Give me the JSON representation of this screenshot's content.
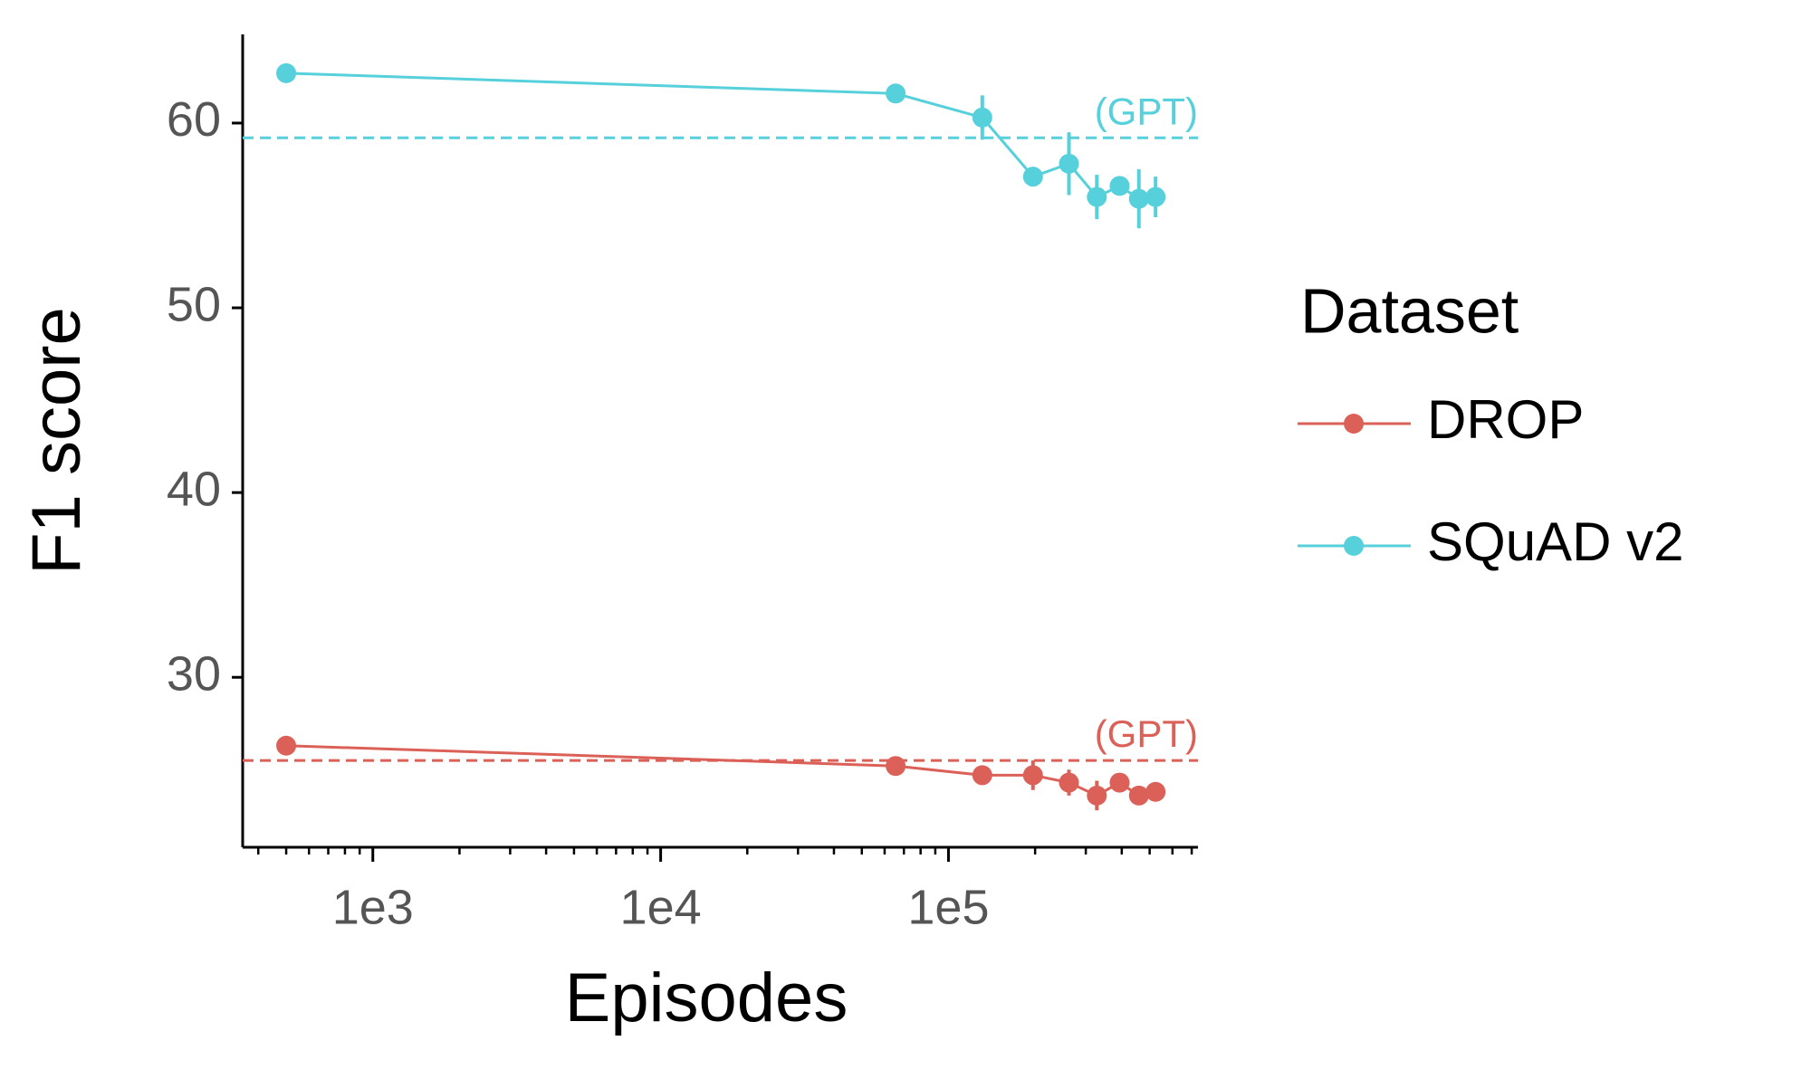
{
  "chart_data": {
    "type": "line",
    "x_label": "Episodes",
    "y_label": "F1 score",
    "x": [
      500,
      65536,
      131072,
      196608,
      262144,
      327680,
      393216,
      458752,
      524288
    ],
    "xscale": "log",
    "xlim": [
      353,
      736000
    ],
    "xticks": [
      {
        "value": 1000,
        "label": "1e3"
      },
      {
        "value": 10000,
        "label": "1e4"
      },
      {
        "value": 100000,
        "label": "1e5"
      }
    ],
    "xminorticks": [
      400,
      500,
      600,
      700,
      800,
      900,
      2000,
      3000,
      4000,
      5000,
      6000,
      7000,
      8000,
      9000,
      20000,
      30000,
      40000,
      50000,
      60000,
      70000,
      80000,
      90000,
      200000,
      300000,
      400000,
      500000,
      600000,
      700000
    ],
    "ylim": [
      20.8,
      64.8
    ],
    "yticks": [
      30,
      40,
      50,
      60
    ],
    "legend_title": "Dataset",
    "legend_position": "right",
    "series": [
      {
        "name": "DROP",
        "color": "#db6158",
        "values": [
          26.3,
          25.2,
          24.7,
          24.7,
          24.3,
          23.6,
          24.3,
          23.6,
          23.8
        ],
        "errors": [
          0.2,
          0.2,
          0.3,
          0.8,
          0.7,
          0.8,
          0.3,
          0.3,
          0.3
        ],
        "reference": 25.5,
        "reference_label": "(GPT)"
      },
      {
        "name": "SQuAD v2",
        "color": "#56d0db",
        "values": [
          62.7,
          61.6,
          60.3,
          57.1,
          57.8,
          56.0,
          56.6,
          55.9,
          56.0
        ],
        "errors": [
          0.2,
          0.2,
          1.2,
          0.5,
          1.7,
          1.2,
          0.3,
          1.6,
          1.1
        ],
        "reference": 59.2,
        "reference_label": "(GPT)"
      }
    ]
  }
}
